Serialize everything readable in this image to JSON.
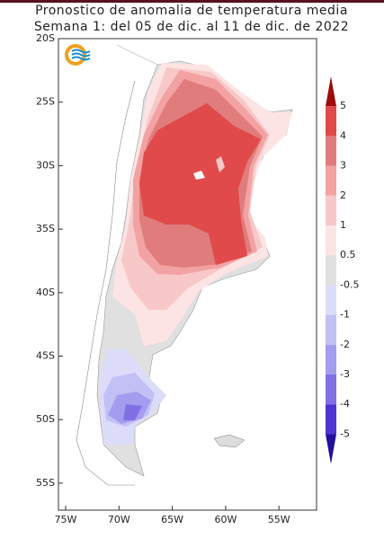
{
  "title": [
    "Pronostico de anomalia de temperatura media",
    "Semana 1: del 05 de dic. al 11 de dic. de 2022"
  ],
  "lat_labels": [
    "20S",
    "25S",
    "30S",
    "35S",
    "40S",
    "45S",
    "50S",
    "55S"
  ],
  "lon_labels": [
    "75W",
    "70W",
    "65W",
    "60W",
    "55W"
  ],
  "colorbar": {
    "labels": [
      "5",
      "4",
      "3",
      "2",
      "1",
      "0.5",
      "-0.5",
      "-1",
      "-2",
      "-3",
      "-4",
      "-5"
    ],
    "colors": [
      "#9e0c0c",
      "#e04a4a",
      "#e07c7c",
      "#f2a2a2",
      "#f8c8c8",
      "#fde4e4",
      "#e0e0e0",
      "#dcdcfa",
      "#c2c0f4",
      "#a49cee",
      "#8070e4",
      "#4e34d0",
      "#22109c"
    ]
  }
}
